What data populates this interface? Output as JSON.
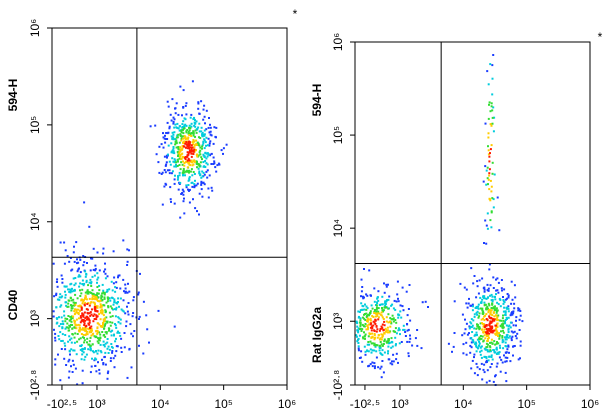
{
  "chart_data": [
    {
      "type": "density",
      "y_label_top": "594-H",
      "y_label_bottom": "CD40",
      "marker": "*",
      "xlim": [
        -690,
        1000000
      ],
      "ylim": [
        -631,
        1000000
      ],
      "xticks": [
        {
          "value": -316,
          "label": "-10²·⁵"
        },
        {
          "value": 1000,
          "label": "10³"
        },
        {
          "value": 10000,
          "label": "10⁴"
        },
        {
          "value": 100000,
          "label": "10⁵"
        },
        {
          "value": 1000000,
          "label": "10⁶"
        }
      ],
      "yticks": [
        {
          "value": -631,
          "label": "-10²·⁸"
        },
        {
          "value": 1000,
          "label": "10³"
        },
        {
          "value": 10000,
          "label": "10⁴"
        },
        {
          "value": 100000,
          "label": "10⁵"
        },
        {
          "value": 1000000,
          "label": "10⁶"
        }
      ],
      "gates": {
        "x": 4270,
        "y": 4300
      },
      "populations": [
        {
          "x": 667,
          "y": 1095
        },
        {
          "x": 27000,
          "y": 55000
        }
      ]
    },
    {
      "type": "density",
      "y_label_top": "594-H",
      "y_label_bottom": "Rat IgG2a",
      "marker": "*",
      "xlim": [
        -690,
        1000000
      ],
      "ylim": [
        -631,
        1000000
      ],
      "xticks": [
        {
          "value": -316,
          "label": "-10²·⁵"
        },
        {
          "value": 1000,
          "label": "10³"
        },
        {
          "value": 10000,
          "label": "10⁴"
        },
        {
          "value": 100000,
          "label": "10⁵"
        },
        {
          "value": 1000000,
          "label": "10⁶"
        }
      ],
      "yticks": [
        {
          "value": -631,
          "label": "-10²·⁸"
        },
        {
          "value": 1000,
          "label": "10³"
        },
        {
          "value": 10000,
          "label": "10⁴"
        },
        {
          "value": 100000,
          "label": "10⁵"
        },
        {
          "value": 1000000,
          "label": "10⁶"
        }
      ],
      "gates": {
        "x": 4470,
        "y": 4170
      },
      "populations": [
        {
          "x": 143,
          "y": 905
        },
        {
          "x": 25700,
          "y": 905
        },
        {
          "x": 25700,
          "y": 60000
        }
      ]
    }
  ]
}
